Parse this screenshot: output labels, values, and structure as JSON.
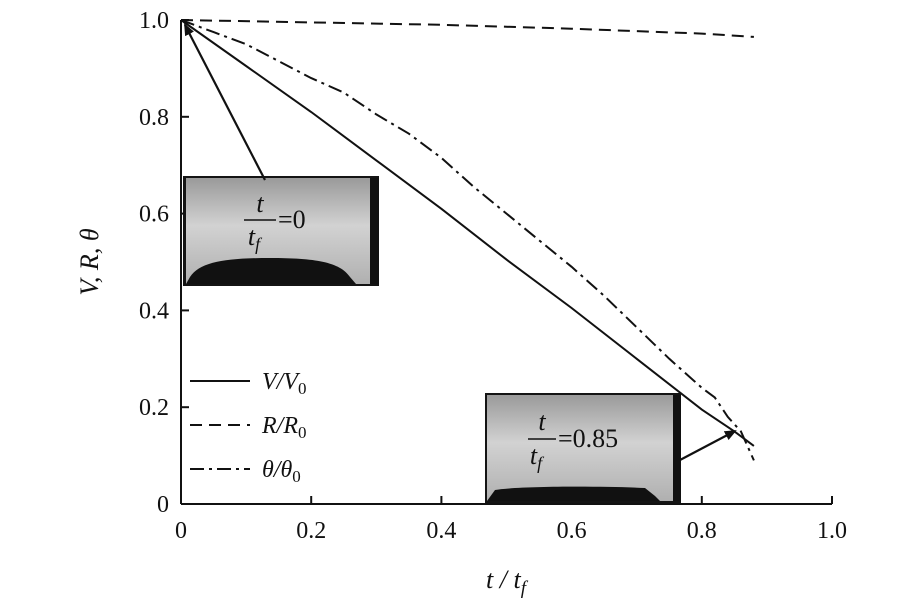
{
  "chart_data": {
    "type": "line",
    "xlabel": "t / tf",
    "ylabel": "V, R, θ",
    "xlim": [
      0,
      1.0
    ],
    "ylim": [
      0,
      1.0
    ],
    "xticks": [
      "0",
      "0.2",
      "0.4",
      "0.6",
      "0.8",
      "1.0"
    ],
    "yticks": [
      "0",
      "0.2",
      "0.4",
      "0.6",
      "0.8",
      "1.0"
    ],
    "grid": false,
    "legend_position": "bottom-left",
    "series": [
      {
        "name": "V/V0",
        "style": "solid",
        "x": [
          0,
          0.1,
          0.2,
          0.3,
          0.4,
          0.5,
          0.6,
          0.7,
          0.8,
          0.85,
          0.88
        ],
        "y": [
          1.0,
          0.905,
          0.81,
          0.71,
          0.61,
          0.505,
          0.405,
          0.3,
          0.195,
          0.15,
          0.12
        ]
      },
      {
        "name": "R/R0",
        "style": "dashed",
        "x": [
          0,
          0.2,
          0.4,
          0.6,
          0.8,
          0.88
        ],
        "y": [
          1.0,
          0.995,
          0.99,
          0.982,
          0.972,
          0.965
        ]
      },
      {
        "name": "θ/θ0",
        "style": "dashdot",
        "x": [
          0,
          0.05,
          0.1,
          0.15,
          0.2,
          0.25,
          0.3,
          0.35,
          0.4,
          0.45,
          0.5,
          0.55,
          0.6,
          0.65,
          0.7,
          0.75,
          0.8,
          0.82,
          0.84,
          0.86,
          0.88
        ],
        "y": [
          1.0,
          0.975,
          0.95,
          0.915,
          0.88,
          0.85,
          0.805,
          0.765,
          0.715,
          0.655,
          0.6,
          0.545,
          0.49,
          0.43,
          0.365,
          0.3,
          0.24,
          0.22,
          0.18,
          0.15,
          0.09
        ]
      }
    ],
    "insets": [
      {
        "label_t": "t",
        "label_tf": "tf",
        "value": "=0",
        "anchor": {
          "x": 0.0,
          "y": 1.0
        }
      },
      {
        "label_t": "t",
        "label_tf": "tf",
        "value": "=0.85",
        "anchor": {
          "x": 0.85,
          "y": 0.155
        }
      }
    ]
  }
}
